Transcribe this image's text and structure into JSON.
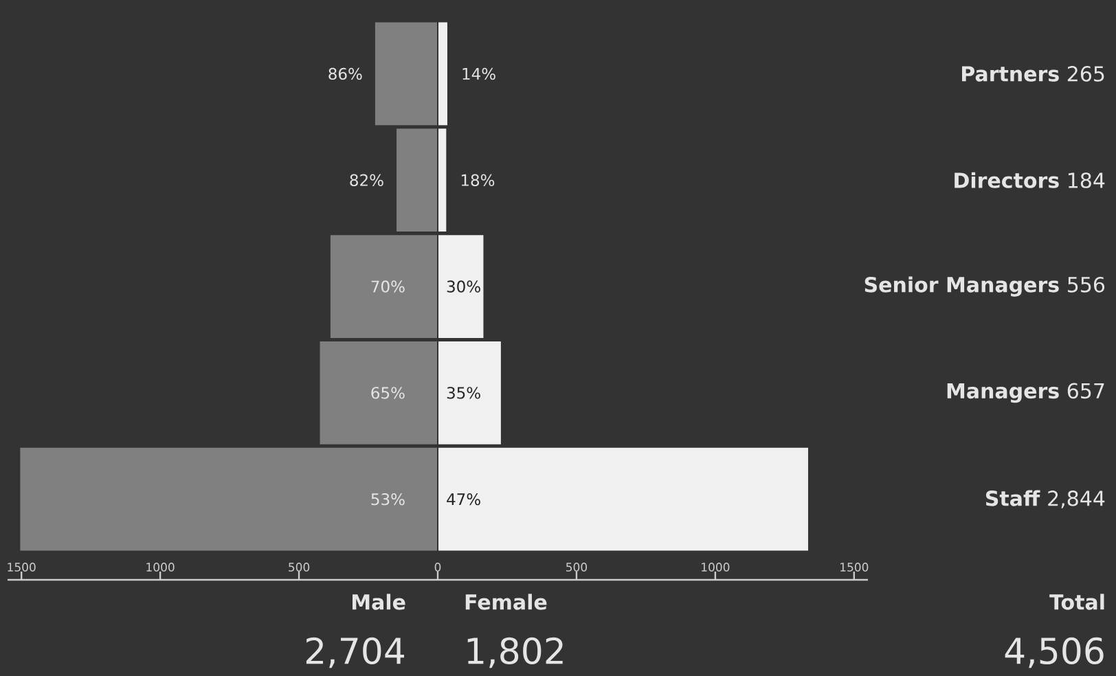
{
  "chart_data": {
    "type": "bar",
    "orientation": "horizontal",
    "categories": [
      "**Partners** 265",
      "**Directors** 184",
      "**Senior Managers** 556",
      "**Managers** 657",
      "**Staff** 2,844"
    ],
    "series": [
      {
        "name": "Male",
        "color": "#808080",
        "values": [
          -228,
          -151,
          -389,
          -427,
          -1507
        ]
      },
      {
        "name": "Female",
        "color": "#f0f0f0",
        "values": [
          37,
          33,
          167,
          230,
          1337
        ]
      }
    ],
    "stacked": true,
    "xlim": [
      -1550,
      1550
    ],
    "xticks": [
      {
        "value": -1500,
        "label": "1500"
      },
      {
        "value": -1000,
        "label": "1000"
      },
      {
        "value": -500,
        "label": "500"
      },
      0,
      500,
      1000,
      1500
    ],
    "annotations": [
      "2,704",
      "1,802",
      "Total",
      "4,506",
      "86%",
      "14%",
      "82%",
      "18%",
      "70%",
      "30%",
      "65%",
      "35%",
      "53%",
      "47%"
    ],
    "grid": false
  }
}
